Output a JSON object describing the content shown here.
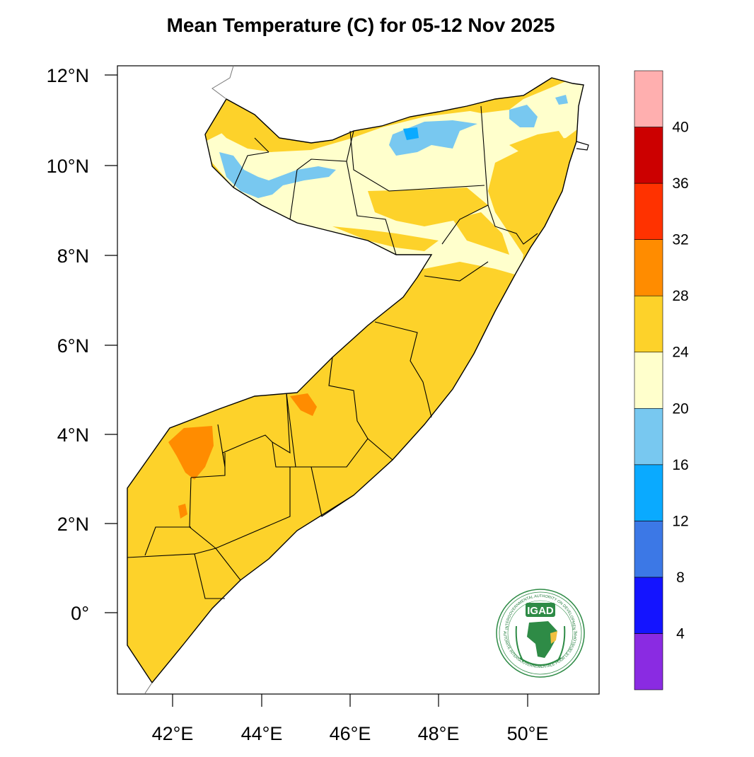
{
  "title": "Mean Temperature (C) for 05-12 Nov 2025",
  "map": {
    "lat_ticks": [
      "12°N",
      "10°N",
      "8°N",
      "6°N",
      "4°N",
      "2°N",
      "0°"
    ],
    "lon_ticks": [
      "42°E",
      "44°E",
      "46°E",
      "48°E",
      "50°E"
    ],
    "lat_range": [
      -1.8,
      12.2
    ],
    "lon_range": [
      40.9,
      51.8
    ]
  },
  "colorbar": {
    "tick_labels": [
      "4",
      "8",
      "12",
      "16",
      "20",
      "24",
      "28",
      "32",
      "36",
      "40"
    ],
    "colors": [
      "#8a2be2",
      "#1414ff",
      "#3c78e6",
      "#0aaaff",
      "#78c8f0",
      "#ffffcc",
      "#fdd22a",
      "#ff8c00",
      "#ff3200",
      "#cc0000",
      "#ffafaf"
    ]
  },
  "logo": {
    "name": "IGAD",
    "ring_text_top": "INTERGOVERNMENTAL AUTHORITY ON DEVELOPMENT",
    "ring_text_bottom": "AUTORITÉ INTERGOUVERNEMENTALE POUR LE DÉVELOPPEMENT"
  }
}
